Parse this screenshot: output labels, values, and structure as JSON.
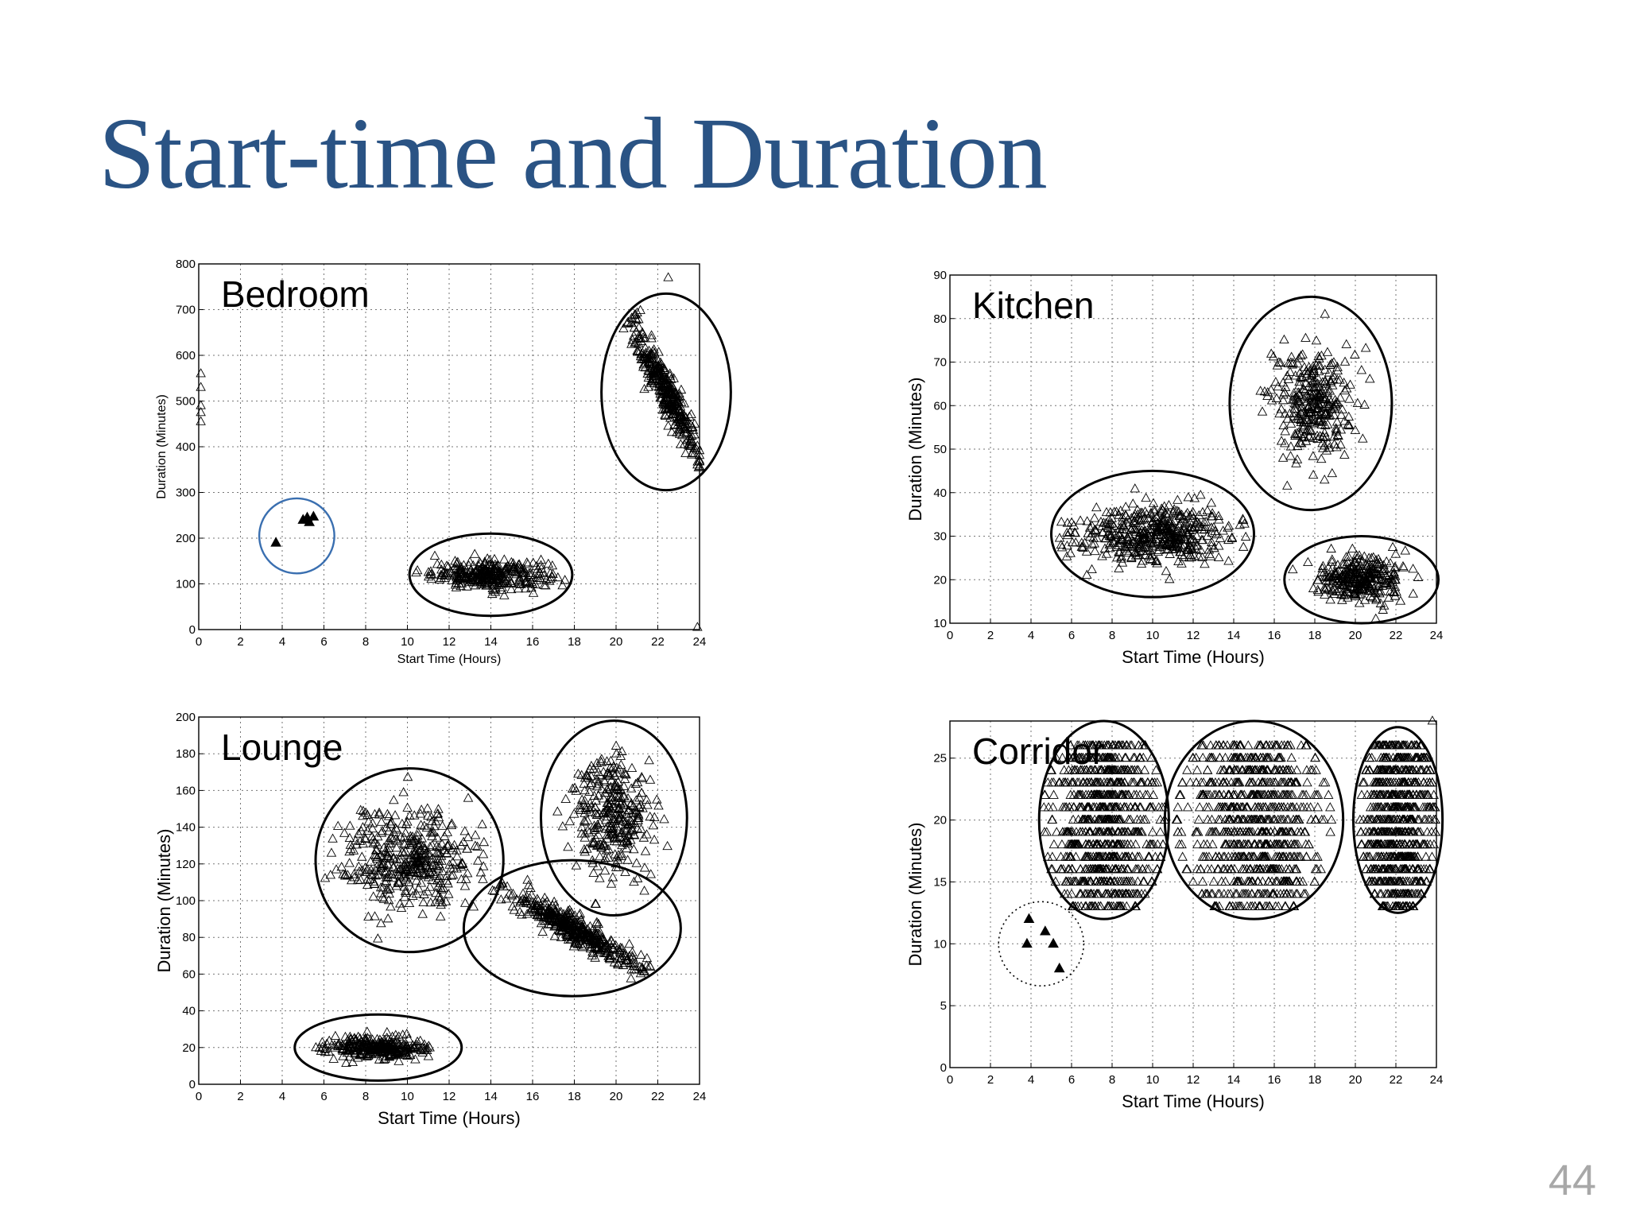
{
  "slide": {
    "title": "Start-time and Duration",
    "page_number": "44"
  },
  "chart_data": [
    {
      "id": "bedroom",
      "type": "scatter",
      "title": "Bedroom",
      "xlabel": "Start Time (Hours)",
      "ylabel": "Duration (Minutes)",
      "xlim": [
        0,
        24
      ],
      "ylim": [
        0,
        800
      ],
      "xticks": [
        0,
        2,
        4,
        6,
        8,
        10,
        12,
        14,
        16,
        18,
        20,
        22,
        24
      ],
      "yticks": [
        0,
        100,
        200,
        300,
        400,
        500,
        600,
        700,
        800
      ],
      "grid": true,
      "clusters": [
        {
          "cx": 14,
          "cy": 120,
          "rx": 3.9,
          "ry": 90,
          "sx": 1.4,
          "sy": 15,
          "n": 320,
          "tilt": 0
        },
        {
          "cx": 22.4,
          "cy": 520,
          "rx": 3.1,
          "ry": 215,
          "sx": 0.8,
          "sy": 60,
          "n": 360,
          "tilt": -85
        }
      ],
      "outliers": [
        {
          "x": 0.1,
          "y": 560
        },
        {
          "x": 0.1,
          "y": 530
        },
        {
          "x": 0.1,
          "y": 490
        },
        {
          "x": 0.1,
          "y": 475
        },
        {
          "x": 0.1,
          "y": 455
        },
        {
          "x": 22.5,
          "y": 770
        },
        {
          "x": 23.9,
          "y": 5
        }
      ],
      "highlight": {
        "cx": 4.7,
        "cy": 205,
        "rx": 1.8,
        "ry": 82,
        "color": "#3a6fb0",
        "style": "solid"
      },
      "filled_points": [
        {
          "x": 3.7,
          "y": 190
        },
        {
          "x": 5.0,
          "y": 240
        },
        {
          "x": 5.3,
          "y": 235
        },
        {
          "x": 5.5,
          "y": 247
        },
        {
          "x": 5.2,
          "y": 245
        }
      ],
      "tick_font": 15,
      "axis_font": 16,
      "label_font": 46
    },
    {
      "id": "kitchen",
      "type": "scatter",
      "title": "Kitchen",
      "xlabel": "Start Time (Hours)",
      "ylabel": "Duration (Minutes)",
      "xlim": [
        0,
        24
      ],
      "ylim": [
        10,
        90
      ],
      "xticks": [
        0,
        2,
        4,
        6,
        8,
        10,
        12,
        14,
        16,
        18,
        20,
        22,
        24
      ],
      "yticks": [
        10,
        20,
        30,
        40,
        50,
        60,
        70,
        80,
        90
      ],
      "grid": true,
      "clusters": [
        {
          "cx": 10,
          "cy": 30.5,
          "rx": 5.0,
          "ry": 14.5,
          "sx": 1.9,
          "sy": 3.3,
          "n": 480,
          "tilt": 0
        },
        {
          "cx": 17.8,
          "cy": 60.5,
          "rx": 4.0,
          "ry": 24.5,
          "sx": 1.0,
          "sy": 6.0,
          "n": 320,
          "tilt": 0
        },
        {
          "cx": 20.3,
          "cy": 20,
          "rx": 3.8,
          "ry": 10,
          "sx": 1.1,
          "sy": 2.6,
          "n": 320,
          "tilt": 0
        }
      ],
      "outliers": [
        {
          "x": 18.5,
          "y": 81
        }
      ],
      "tick_font": 15,
      "axis_font": 22,
      "label_font": 46
    },
    {
      "id": "lounge",
      "type": "scatter",
      "title": "Lounge",
      "xlabel": "Start Time (Hours)",
      "ylabel": "Duration (Minutes)",
      "xlim": [
        0,
        24
      ],
      "ylim": [
        0,
        200
      ],
      "xticks": [
        0,
        2,
        4,
        6,
        8,
        10,
        12,
        14,
        16,
        18,
        20,
        22,
        24
      ],
      "yticks": [
        0,
        20,
        40,
        60,
        80,
        100,
        120,
        140,
        160,
        180,
        200
      ],
      "grid": true,
      "clusters": [
        {
          "cx": 10.1,
          "cy": 122,
          "rx": 4.5,
          "ry": 50,
          "sx": 1.6,
          "sy": 14,
          "n": 420,
          "tilt": 0
        },
        {
          "cx": 17.9,
          "cy": 85,
          "rx": 5.2,
          "ry": 37,
          "sx": 1.6,
          "sy": 9,
          "n": 420,
          "tilt": -8
        },
        {
          "cx": 19.9,
          "cy": 145,
          "rx": 3.5,
          "ry": 53,
          "sx": 0.9,
          "sy": 17,
          "n": 320,
          "tilt": 0
        },
        {
          "cx": 8.6,
          "cy": 20,
          "rx": 4.0,
          "ry": 18,
          "sx": 1.1,
          "sy": 3,
          "n": 300,
          "tilt": 0
        }
      ],
      "outliers": [],
      "tick_font": 15,
      "axis_font": 22,
      "label_font": 46
    },
    {
      "id": "corridor",
      "type": "scatter",
      "title": "Corridor",
      "xlabel": "Start Time (Hours)",
      "ylabel": "Duration (Minutes)",
      "xlim": [
        0,
        24
      ],
      "ylim": [
        0,
        28
      ],
      "xticks": [
        0,
        2,
        4,
        6,
        8,
        10,
        12,
        14,
        16,
        18,
        20,
        22,
        24
      ],
      "yticks": [
        0,
        5,
        10,
        15,
        20,
        25
      ],
      "ytick_labels": [
        "0",
        "5",
        "10",
        "15",
        "20",
        "25"
      ],
      "grid": true,
      "bands": [
        {
          "cx": 7.6,
          "cy": 20,
          "rx": 3.2,
          "ry": 8,
          "x0": 4.6,
          "x1": 10.6,
          "y0": 13,
          "y1": 26,
          "sx": 1.3
        },
        {
          "cx": 15,
          "cy": 20,
          "rx": 4.4,
          "ry": 8,
          "x0": 11.2,
          "x1": 18.8,
          "y0": 13,
          "y1": 26,
          "sx": 1.7
        },
        {
          "cx": 22.1,
          "cy": 20,
          "rx": 2.2,
          "ry": 7.5,
          "x0": 20.2,
          "x1": 23.9,
          "y0": 13,
          "y1": 26,
          "sx": 0.9
        }
      ],
      "outliers": [
        {
          "x": 23.8,
          "y": 28
        }
      ],
      "highlight": {
        "cx": 4.5,
        "cy": 10,
        "rx": 2.1,
        "ry": 3.4,
        "color": "#000000",
        "style": "dotted"
      },
      "filled_points": [
        {
          "x": 3.9,
          "y": 12
        },
        {
          "x": 3.8,
          "y": 10
        },
        {
          "x": 4.7,
          "y": 11
        },
        {
          "x": 5.1,
          "y": 10
        },
        {
          "x": 5.4,
          "y": 8
        }
      ],
      "tick_font": 15,
      "axis_font": 22,
      "label_font": 46
    }
  ]
}
